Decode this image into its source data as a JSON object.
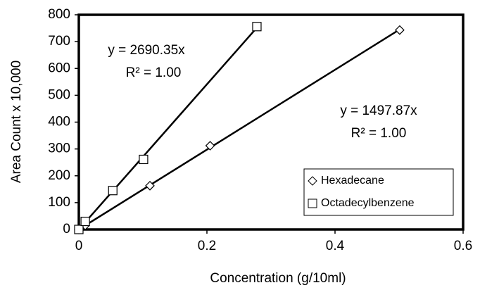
{
  "chart_data": {
    "type": "scatter",
    "x_label": "Concentration (g/10ml)",
    "y_label": "Area Count x 10,000",
    "xlim": [
      0,
      0.6
    ],
    "xticks": [
      0,
      0.2,
      0.4,
      0.6
    ],
    "ylim": [
      0,
      800
    ],
    "yticks": [
      0,
      100,
      200,
      300,
      400,
      500,
      600,
      700,
      800
    ],
    "legend": "lower right",
    "series": [
      {
        "name": "Hexadecane",
        "marker": "diamond",
        "color": "#000000",
        "x": [
          0,
          0.01,
          0.111,
          0.205,
          0.501
        ],
        "values": [
          0,
          15,
          163,
          312,
          743
        ],
        "fit_label": "y = 1497.87x",
        "r2_label": "R² = 1.00"
      },
      {
        "name": "Octadecylbenzene",
        "marker": "square",
        "color": "#000000",
        "x": [
          0,
          0.01,
          0.053,
          0.101,
          0.278
        ],
        "values": [
          0,
          30,
          145,
          261,
          756
        ],
        "fit_label": "y = 2690.35x",
        "r2_label": "R² = 1.00"
      }
    ]
  }
}
